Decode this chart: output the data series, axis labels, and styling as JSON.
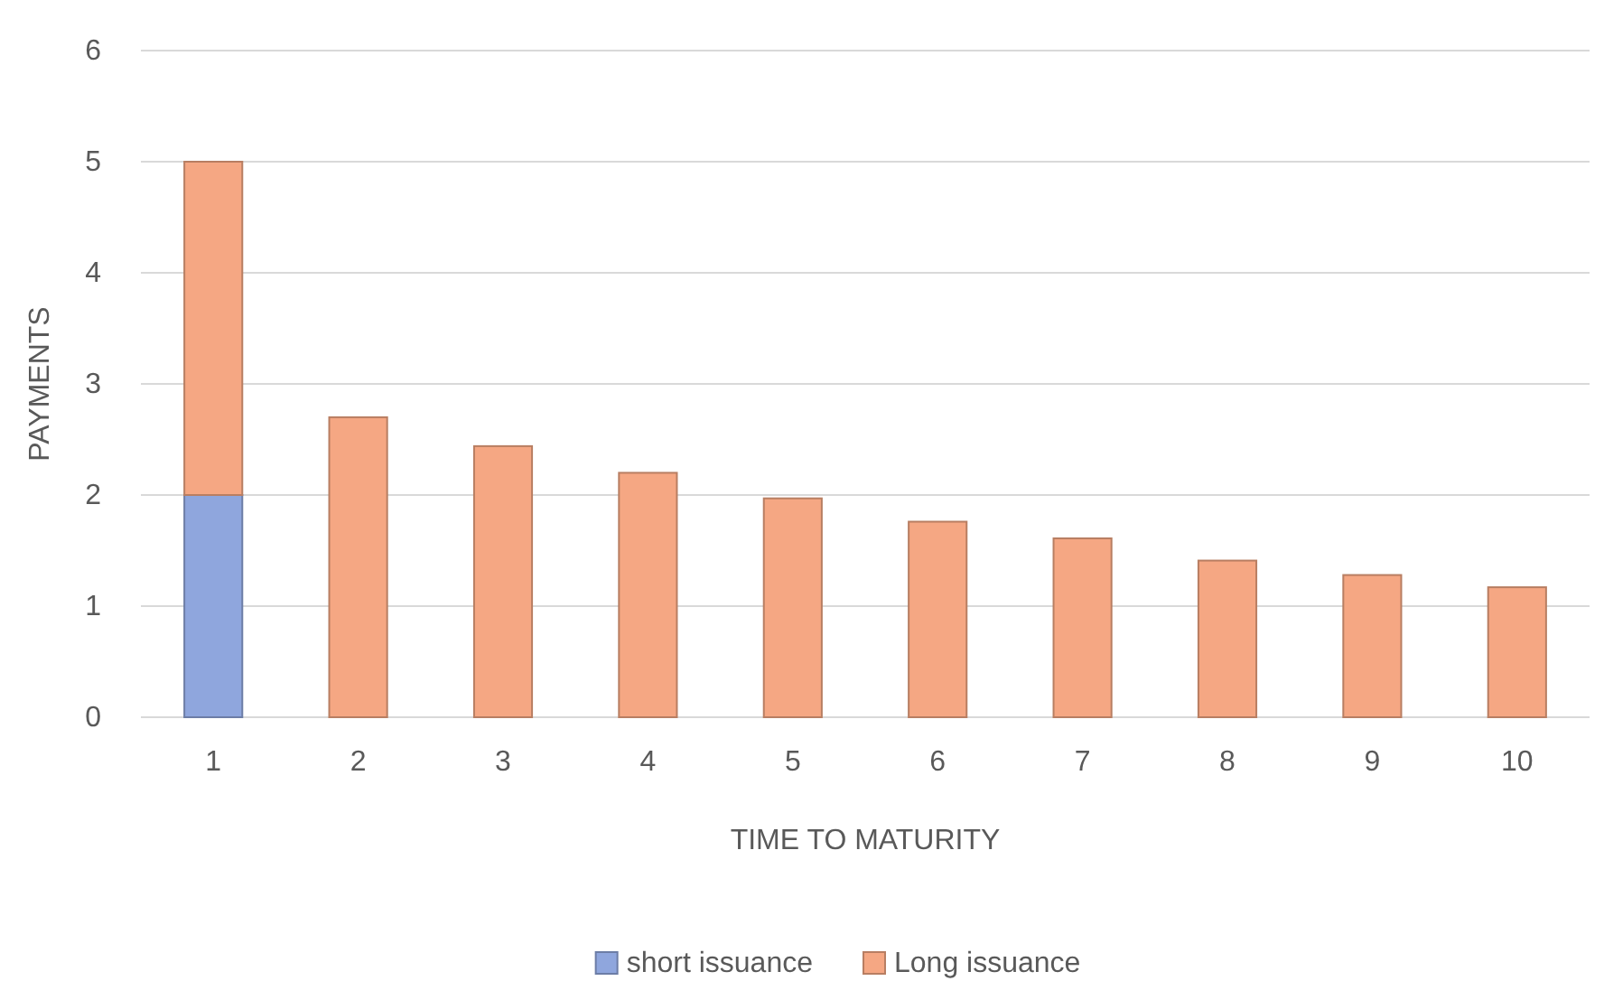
{
  "chart_data": {
    "type": "bar",
    "xlabel": "TIME TO MATURITY",
    "ylabel": "PAYMENTS",
    "categories": [
      "1",
      "2",
      "3",
      "4",
      "5",
      "6",
      "7",
      "8",
      "9",
      "10"
    ],
    "series": [
      {
        "name": "short issuance",
        "color": "#8fa6dd",
        "values": [
          2,
          0,
          0,
          0,
          0,
          0,
          0,
          0,
          0,
          0
        ]
      },
      {
        "name": "Long issuance",
        "color": "#f5a783",
        "values": [
          3,
          2.7,
          2.44,
          2.2,
          1.97,
          1.76,
          1.61,
          1.41,
          1.28,
          1.17
        ]
      }
    ],
    "stacked": true,
    "ylim": [
      0,
      6
    ],
    "yticks": [
      0,
      1,
      2,
      3,
      4,
      5,
      6
    ],
    "grid": "y",
    "legend": "bottom"
  }
}
